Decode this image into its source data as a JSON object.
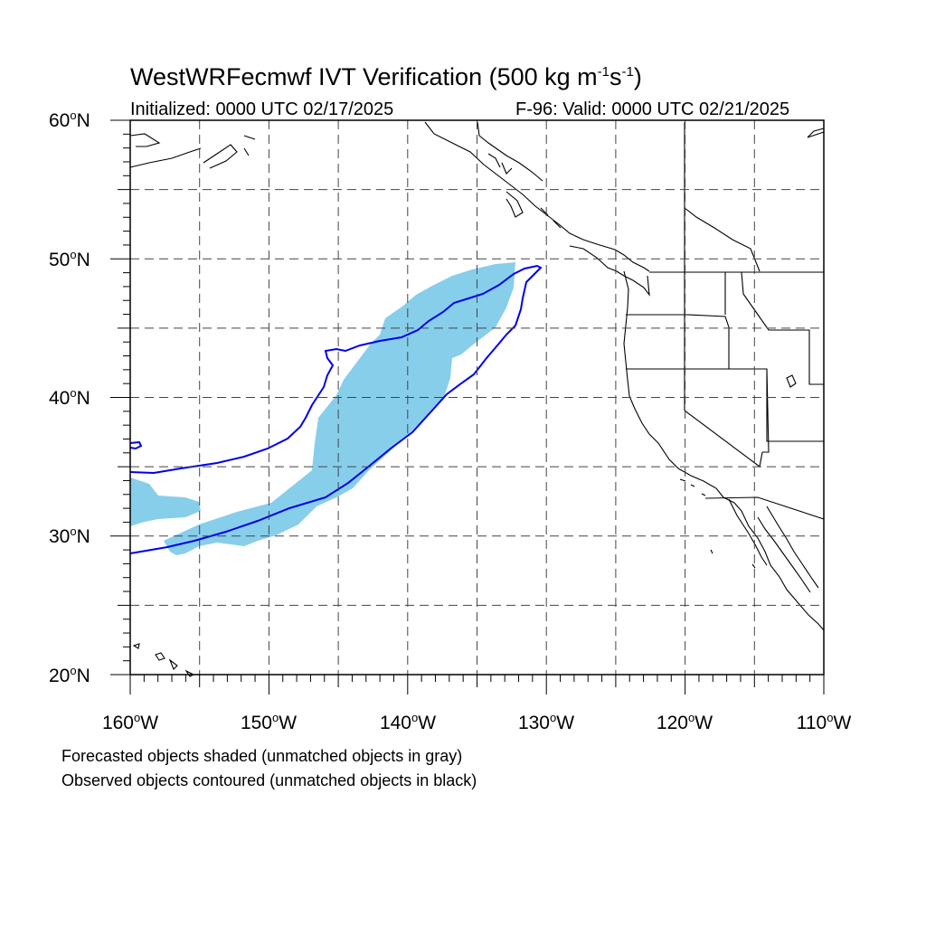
{
  "header": {
    "title_main": "WestWRFecmwf IVT Verification (500 kg m",
    "title_exp1": "-1",
    "title_mid": "s",
    "title_exp2": "-1",
    "title_end": ")",
    "initialized": "Initialized: 0000 UTC 02/17/2025",
    "valid": "F-96: Valid: 0000 UTC 02/21/2025"
  },
  "axes": {
    "lat_labels": [
      {
        "num": "60",
        "sym": "o",
        "hemi": "N"
      },
      {
        "num": "50",
        "sym": "o",
        "hemi": "N"
      },
      {
        "num": "40",
        "sym": "o",
        "hemi": "N"
      },
      {
        "num": "30",
        "sym": "o",
        "hemi": "N"
      },
      {
        "num": "20",
        "sym": "o",
        "hemi": "N"
      }
    ],
    "lon_labels": [
      {
        "num": "160",
        "sym": "o",
        "hemi": "W"
      },
      {
        "num": "150",
        "sym": "o",
        "hemi": "W"
      },
      {
        "num": "140",
        "sym": "o",
        "hemi": "W"
      },
      {
        "num": "130",
        "sym": "o",
        "hemi": "W"
      },
      {
        "num": "120",
        "sym": "o",
        "hemi": "W"
      },
      {
        "num": "110",
        "sym": "o",
        "hemi": "W"
      }
    ],
    "lon_range": [
      -160,
      -110
    ],
    "lat_range": [
      20,
      60
    ],
    "grid": "dashed, every 5 degrees"
  },
  "legend": {
    "forecast_line": "Forecasted objects shaded (unmatched objects in gray)",
    "observed_line": "Observed objects contoured (unmatched objects in black)"
  },
  "colors": {
    "forecast_fill": "#87CEEB",
    "observed_contour": "#0000EE",
    "coastline": "#000000",
    "grid": "#444444"
  }
}
